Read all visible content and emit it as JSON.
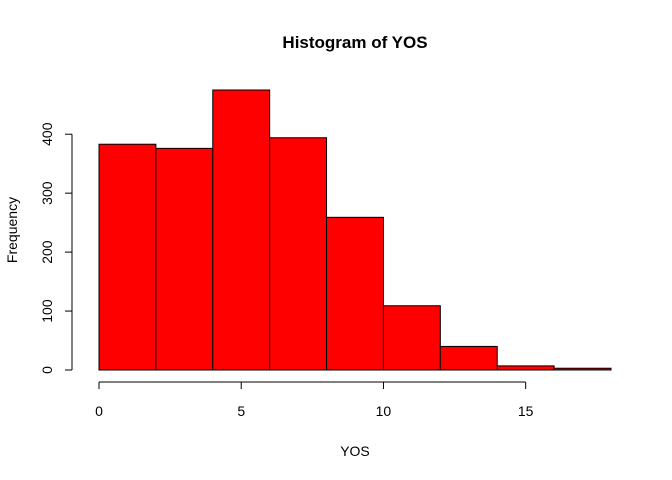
{
  "chart_data": {
    "type": "bar",
    "title": "Histogram of YOS",
    "xlabel": "YOS",
    "ylabel": "Frequency",
    "bins": [
      {
        "from": 0,
        "to": 2,
        "count": 383
      },
      {
        "from": 2,
        "to": 4,
        "count": 376
      },
      {
        "from": 4,
        "to": 6,
        "count": 475
      },
      {
        "from": 6,
        "to": 8,
        "count": 394
      },
      {
        "from": 8,
        "to": 10,
        "count": 259
      },
      {
        "from": 10,
        "to": 12,
        "count": 109
      },
      {
        "from": 12,
        "to": 14,
        "count": 40
      },
      {
        "from": 14,
        "to": 16,
        "count": 7
      },
      {
        "from": 16,
        "to": 18,
        "count": 3
      }
    ],
    "xticks": [
      0,
      5,
      10,
      15
    ],
    "yticks": [
      0,
      100,
      200,
      300,
      400
    ],
    "xlim": [
      0,
      18
    ],
    "ylim": [
      0,
      475
    ],
    "bar_color": "#ff0000",
    "grid": false,
    "legend": "none"
  }
}
